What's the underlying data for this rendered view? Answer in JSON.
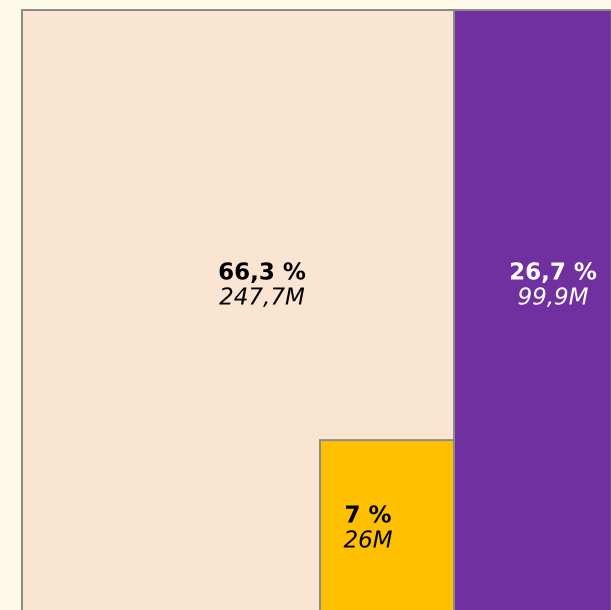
{
  "chart_data": {
    "type": "treemap",
    "values": [
      247.7,
      99.9,
      26
    ],
    "value_labels": [
      "247,7M",
      "99,9M",
      "26M"
    ],
    "percentages": [
      66.3,
      26.7,
      7
    ],
    "percentage_labels": [
      "66,3 %",
      "26,7 %",
      "7 %"
    ],
    "colors": [
      "#fae5d3",
      "#7030a0",
      "#ffc000"
    ],
    "text_colors": [
      "#000000",
      "#ffffff",
      "#000000"
    ]
  }
}
